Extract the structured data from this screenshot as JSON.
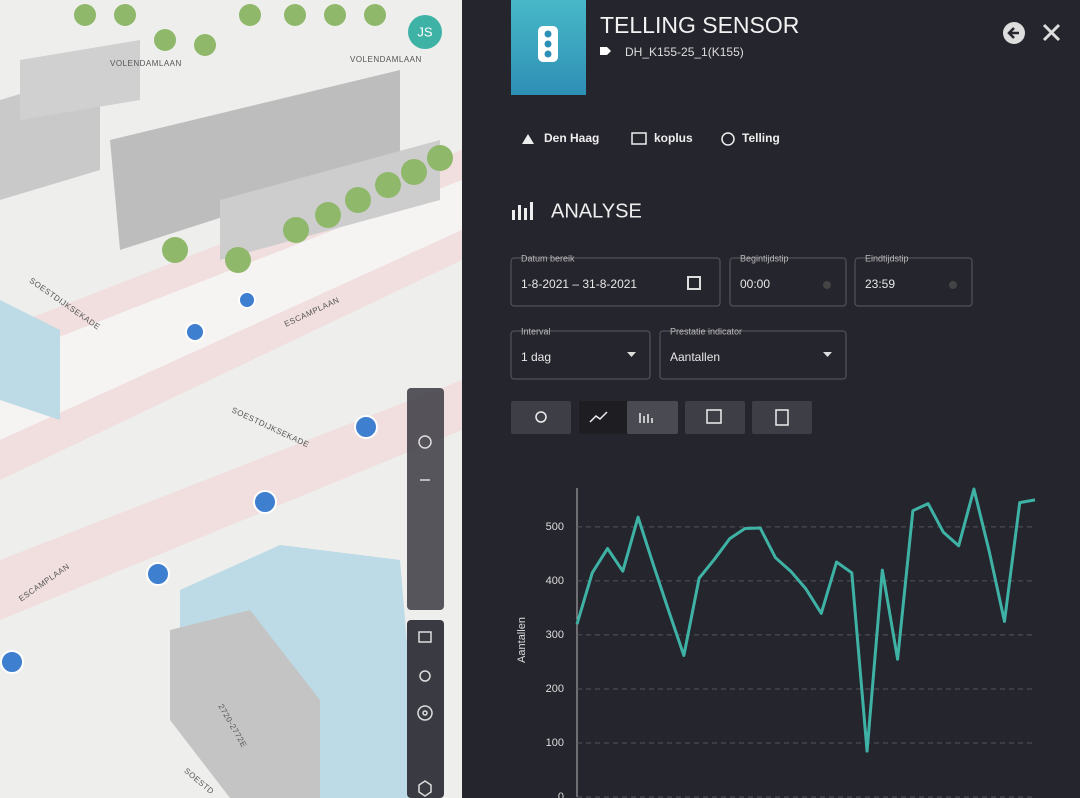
{
  "map": {
    "avatar": "JS",
    "labels": [
      "VOLENDAMLAAN",
      "VOLENDAMLAAN",
      "SOESTDIJKSEKADE",
      "ESCAMPLAAN",
      "SOESTDIJKSEKADE",
      "ESCAMPLAAN",
      "2720-2772E",
      "SOESTD"
    ]
  },
  "panel": {
    "title": "TELLING SENSOR",
    "tag": "DH_K155-25_1(K155)",
    "tabs": [
      "Den Haag",
      "koplus",
      "Telling"
    ],
    "section": "ANALYSE",
    "fields": [
      {
        "label": "Datum bereik",
        "value": "1-8-2021 – 31-8-2021"
      },
      {
        "label": "Begintijdstip",
        "value": "00:00"
      },
      {
        "label": "Eindtijdstip",
        "value": "23:59"
      },
      {
        "label": "Interval",
        "value": "1 dag"
      },
      {
        "label": "Prestatie indicator",
        "value": "Aantallen"
      }
    ]
  },
  "chart_data": {
    "type": "line",
    "ylabel": "Aantallen",
    "color": "#3fb2a6",
    "values": [
      320,
      415,
      460,
      418,
      518,
      430,
      345,
      262,
      405,
      440,
      478,
      497,
      498,
      443,
      418,
      385,
      340,
      435,
      415,
      85,
      420,
      255,
      530,
      543,
      490,
      465,
      570,
      455,
      325,
      545,
      550
    ],
    "ylim": [
      0,
      572
    ],
    "yticks": [
      0,
      100,
      200,
      300,
      400,
      500
    ],
    "grid": true
  }
}
